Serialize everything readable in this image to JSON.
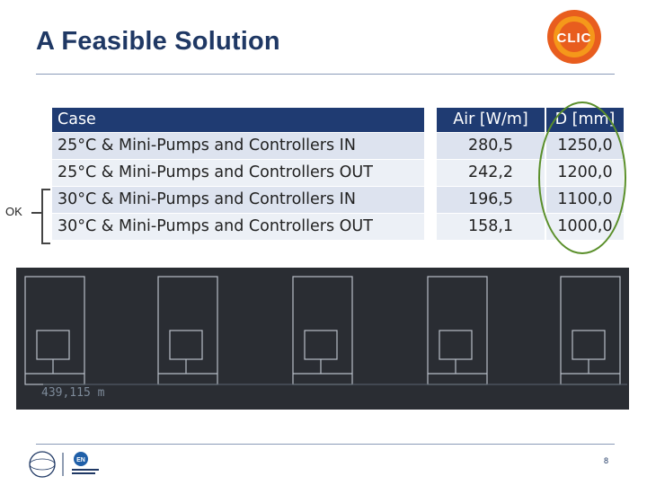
{
  "slide": {
    "title": "A Feasible Solution",
    "logo_text": "CLIC",
    "page_number": "8"
  },
  "table": {
    "headers": {
      "case": "Case",
      "air": "Air [W/m]",
      "d": "D [mm]"
    },
    "rows": [
      {
        "case": "25°C & Mini-Pumps and Controllers IN",
        "air": "280,5",
        "d": "1250,0"
      },
      {
        "case": "25°C & Mini-Pumps and Controllers OUT",
        "air": "242,2",
        "d": "1200,0"
      },
      {
        "case": "30°C & Mini-Pumps and Controllers IN",
        "air": "196,5",
        "d": "1100,0"
      },
      {
        "case": "30°C & Mini-Pumps and Controllers OUT",
        "air": "158,1",
        "d": "1000,0"
      }
    ]
  },
  "annotation": {
    "ok_label": "OK"
  },
  "cad": {
    "dimension_label": "439,115 m"
  },
  "footer": {
    "logo_right_text": "EN"
  },
  "colors": {
    "title": "#1f3864",
    "header_bg": "#1f3b72",
    "row_dark": "#dde3ef",
    "row_light": "#ecf0f6",
    "ellipse": "#5a8f2a",
    "cad_bg": "#2a2d33"
  }
}
